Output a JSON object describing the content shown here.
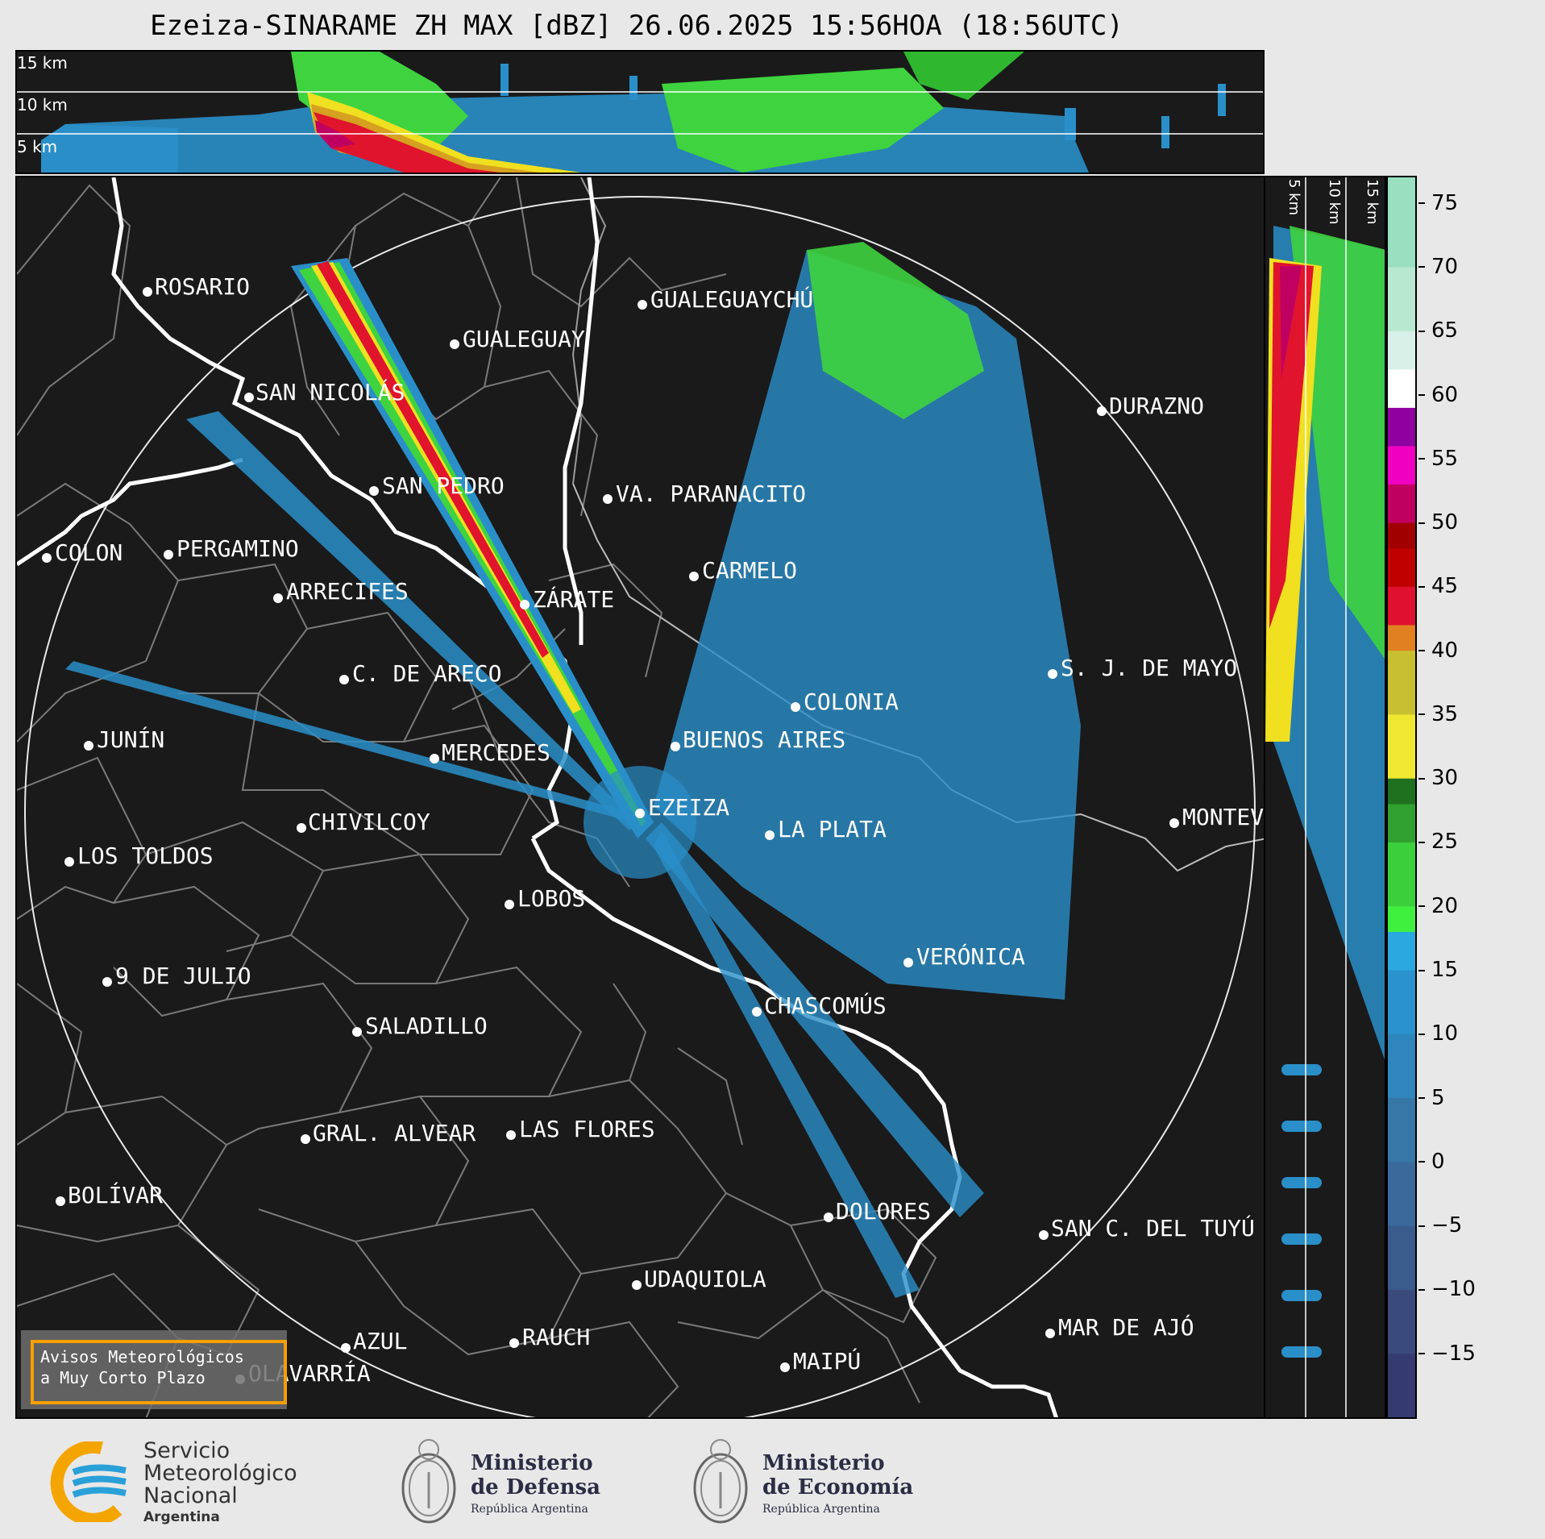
{
  "title": "Ezeiza-SINARAME ZH MAX [dBZ] 26.06.2025 15:56HOA (18:56UTC)",
  "top_panel": {
    "altitude_labels": [
      "15 km",
      "10 km",
      "5 km"
    ]
  },
  "side_panel": {
    "altitude_labels": [
      "5 km",
      "10 km",
      "15 km"
    ]
  },
  "colorbar": {
    "unit": "dBZ",
    "range": [
      -20,
      77
    ],
    "ticks": [
      "75",
      "70",
      "65",
      "60",
      "55",
      "50",
      "45",
      "40",
      "35",
      "30",
      "25",
      "20",
      "15",
      "10",
      "5",
      "0",
      "−5",
      "−10",
      "−15"
    ],
    "tick_values": [
      75,
      70,
      65,
      60,
      55,
      50,
      45,
      40,
      35,
      30,
      25,
      20,
      15,
      10,
      5,
      0,
      -5,
      -10,
      -15
    ]
  },
  "cities": [
    {
      "name": "ROSARIO",
      "dot": [
        181,
        360
      ],
      "label": [
        190,
        340
      ]
    },
    {
      "name": "GUALEGUAYCHÚ",
      "dot": [
        795,
        376
      ],
      "label": [
        805,
        356
      ]
    },
    {
      "name": "GUALEGUAY",
      "dot": [
        562,
        425
      ],
      "label": [
        572,
        405
      ]
    },
    {
      "name": "SAN NICOLÁS",
      "dot": [
        307,
        491
      ],
      "label": [
        315,
        471
      ]
    },
    {
      "name": "DURAZNO",
      "dot": [
        1365,
        508
      ],
      "label": [
        1374,
        488
      ]
    },
    {
      "name": "SAN PEDRO",
      "dot": [
        462,
        607
      ],
      "label": [
        472,
        587
      ]
    },
    {
      "name": "VA. PARANACITO",
      "dot": [
        752,
        617
      ],
      "label": [
        762,
        597
      ]
    },
    {
      "name": "COLON",
      "dot": [
        56,
        690
      ],
      "label": [
        66,
        670
      ]
    },
    {
      "name": "PERGAMINO",
      "dot": [
        207,
        686
      ],
      "label": [
        217,
        665
      ]
    },
    {
      "name": "CARMELO",
      "dot": [
        859,
        713
      ],
      "label": [
        869,
        692
      ]
    },
    {
      "name": "ARRECIFES",
      "dot": [
        343,
        740
      ],
      "label": [
        353,
        718
      ]
    },
    {
      "name": "ZÁRATE",
      "dot": [
        649,
        748
      ],
      "label": [
        659,
        728
      ]
    },
    {
      "name": "C. DE ARECO",
      "dot": [
        425,
        841
      ],
      "label": [
        435,
        820
      ]
    },
    {
      "name": "S. J. DE MAYO",
      "dot": [
        1304,
        834
      ],
      "label": [
        1314,
        813
      ]
    },
    {
      "name": "COLONIA",
      "dot": [
        985,
        875
      ],
      "label": [
        995,
        855
      ]
    },
    {
      "name": "JUNÍN",
      "dot": [
        108,
        923
      ],
      "label": [
        118,
        902
      ]
    },
    {
      "name": "BUENOS AIRES",
      "dot": [
        836,
        924
      ],
      "label": [
        845,
        902
      ]
    },
    {
      "name": "MERCEDES",
      "dot": [
        537,
        939
      ],
      "label": [
        546,
        918
      ]
    },
    {
      "name": "EZEIZA",
      "dot": [
        792,
        1007
      ],
      "label": [
        802,
        986
      ]
    },
    {
      "name": "MONTEVIDEO",
      "dot": [
        1455,
        1019
      ],
      "label": [
        1465,
        998
      ]
    },
    {
      "name": "CHIVILCOY",
      "dot": [
        372,
        1025
      ],
      "label": [
        380,
        1004
      ]
    },
    {
      "name": "LA PLATA",
      "dot": [
        953,
        1034
      ],
      "label": [
        963,
        1013
      ]
    },
    {
      "name": "LOS TOLDOS",
      "dot": [
        84,
        1067
      ],
      "label": [
        94,
        1046
      ]
    },
    {
      "name": "LOBOS",
      "dot": [
        630,
        1120
      ],
      "label": [
        640,
        1099
      ]
    },
    {
      "name": "VERÓNICA",
      "dot": [
        1125,
        1192
      ],
      "label": [
        1135,
        1171
      ]
    },
    {
      "name": "9 DE JULIO",
      "dot": [
        131,
        1216
      ],
      "label": [
        141,
        1195
      ]
    },
    {
      "name": "CHASCOMÚS",
      "dot": [
        937,
        1253
      ],
      "label": [
        946,
        1232
      ]
    },
    {
      "name": "SALADILLO",
      "dot": [
        441,
        1278
      ],
      "label": [
        451,
        1257
      ]
    },
    {
      "name": "GRAL. ALVEAR",
      "dot": [
        377,
        1411
      ],
      "label": [
        386,
        1390
      ]
    },
    {
      "name": "LAS FLORES",
      "dot": [
        632,
        1406
      ],
      "label": [
        642,
        1385
      ]
    },
    {
      "name": "BOLÍVAR",
      "dot": [
        73,
        1488
      ],
      "label": [
        82,
        1467
      ]
    },
    {
      "name": "DOLORES",
      "dot": [
        1026,
        1508
      ],
      "label": [
        1035,
        1487
      ]
    },
    {
      "name": "SAN C. DEL TUYÚ",
      "dot": [
        1293,
        1530
      ],
      "label": [
        1302,
        1508
      ]
    },
    {
      "name": "UDAQUIOLA",
      "dot": [
        788,
        1592
      ],
      "label": [
        797,
        1571
      ]
    },
    {
      "name": "MAR DE AJÓ",
      "dot": [
        1301,
        1652
      ],
      "label": [
        1311,
        1631
      ]
    },
    {
      "name": "AZUL",
      "dot": [
        427,
        1670
      ],
      "label": [
        436,
        1648
      ]
    },
    {
      "name": "RAUCH",
      "dot": [
        636,
        1664
      ],
      "label": [
        646,
        1643
      ]
    },
    {
      "name": "MAIPÚ",
      "dot": [
        972,
        1694
      ],
      "label": [
        982,
        1673
      ]
    },
    {
      "name": "OLAVARRÍA",
      "dot": [
        296,
        1709
      ],
      "label": [
        306,
        1688
      ]
    }
  ],
  "avisos": {
    "line1": "Avisos Meteorológicos",
    "line2": "a Muy Corto Plazo"
  },
  "footer": {
    "smn": {
      "line1": "Servicio",
      "line2": "Meteorológico",
      "line3": "Nacional",
      "line4": "Argentina"
    },
    "defensa": {
      "line1": "Ministerio",
      "line2": "de Defensa",
      "line3": "República Argentina"
    },
    "economia": {
      "line1": "Ministerio",
      "line2": "de Economía",
      "line3": "República Argentina"
    }
  },
  "colors": {
    "background": "#1a1a1a",
    "border": "#000000",
    "coast": "#ffffff",
    "province": "#808080",
    "range_ring": "#ffffff",
    "avisos_border": "#f5a000",
    "smn_orange": "#f5a500",
    "smn_blue": "#2aa0d8"
  },
  "icons": [
    "smn-logo-icon",
    "defensa-seal-icon",
    "economia-seal-icon"
  ]
}
